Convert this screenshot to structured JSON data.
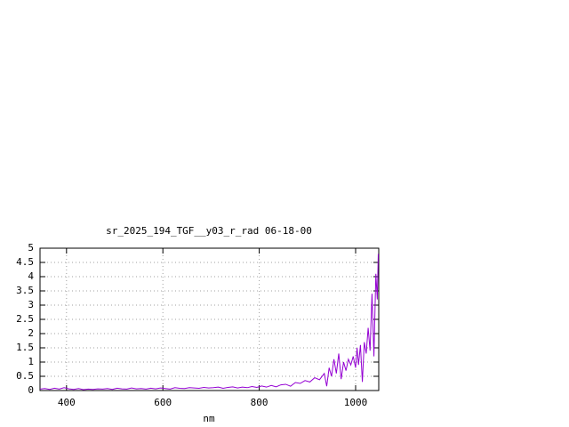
{
  "chart_data": {
    "type": "line",
    "title": "sr_2025_194_TGF__y03_r_rad 06-18-00",
    "x_label": "nm",
    "x": [
      345,
      355,
      365,
      375,
      385,
      395,
      405,
      415,
      425,
      435,
      445,
      455,
      465,
      475,
      485,
      495,
      505,
      515,
      525,
      535,
      545,
      555,
      565,
      575,
      585,
      595,
      605,
      615,
      625,
      635,
      645,
      655,
      665,
      675,
      685,
      695,
      705,
      715,
      725,
      735,
      745,
      755,
      765,
      775,
      785,
      795,
      805,
      815,
      825,
      835,
      845,
      855,
      865,
      875,
      885,
      895,
      905,
      915,
      925,
      935,
      940,
      945,
      950,
      955,
      960,
      965,
      970,
      975,
      980,
      985,
      990,
      995,
      1000,
      1003,
      1006,
      1010,
      1014,
      1018,
      1022,
      1026,
      1030,
      1034,
      1038,
      1042,
      1045,
      1047
    ],
    "series": [
      {
        "color": "#9400d3",
        "values": [
          0.05,
          0.07,
          0.04,
          0.08,
          0.05,
          0.1,
          0.06,
          0.04,
          0.07,
          0.03,
          0.05,
          0.04,
          0.06,
          0.05,
          0.07,
          0.04,
          0.08,
          0.06,
          0.05,
          0.09,
          0.06,
          0.07,
          0.05,
          0.08,
          0.06,
          0.09,
          0.07,
          0.05,
          0.1,
          0.08,
          0.07,
          0.1,
          0.09,
          0.08,
          0.11,
          0.09,
          0.1,
          0.12,
          0.08,
          0.11,
          0.13,
          0.09,
          0.12,
          0.1,
          0.14,
          0.11,
          0.16,
          0.12,
          0.18,
          0.13,
          0.2,
          0.22,
          0.15,
          0.28,
          0.25,
          0.35,
          0.3,
          0.45,
          0.38,
          0.6,
          0.15,
          0.8,
          0.5,
          1.1,
          0.6,
          1.3,
          0.4,
          1.0,
          0.7,
          1.1,
          0.9,
          1.2,
          0.8,
          1.5,
          0.9,
          1.6,
          0.3,
          1.7,
          1.3,
          2.2,
          1.4,
          3.4,
          1.2,
          4.1,
          3.2,
          4.8
        ]
      }
    ],
    "xlim": [
      345,
      1048
    ],
    "xticks": [
      400,
      600,
      800,
      1000
    ],
    "ylim": [
      0,
      5
    ],
    "yticks": [
      0,
      0.5,
      1,
      1.5,
      2,
      2.5,
      3,
      3.5,
      4,
      4.5,
      5
    ],
    "grid": true
  }
}
